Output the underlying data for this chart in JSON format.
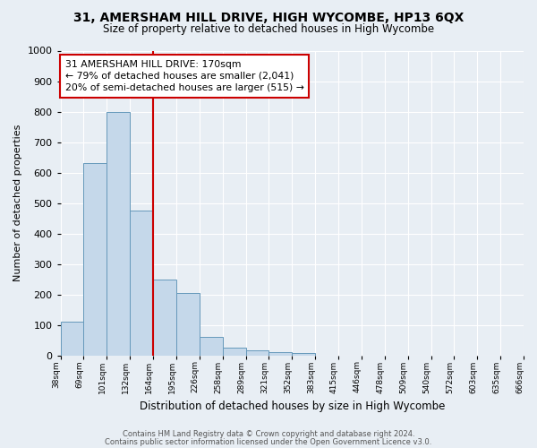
{
  "title_line1": "31, AMERSHAM HILL DRIVE, HIGH WYCOMBE, HP13 6QX",
  "title_line2": "Size of property relative to detached houses in High Wycombe",
  "bar_values": [
    110,
    630,
    800,
    475,
    250,
    205,
    60,
    27,
    18,
    10,
    7,
    0,
    0,
    0,
    0,
    0,
    0,
    0,
    0,
    0
  ],
  "bar_labels": [
    "38sqm",
    "69sqm",
    "101sqm",
    "132sqm",
    "164sqm",
    "195sqm",
    "226sqm",
    "258sqm",
    "289sqm",
    "321sqm",
    "352sqm",
    "383sqm",
    "415sqm",
    "446sqm",
    "478sqm",
    "509sqm",
    "540sqm",
    "572sqm",
    "603sqm",
    "635sqm",
    "666sqm"
  ],
  "bar_color": "#c5d8ea",
  "bar_edge_color": "#6699bb",
  "background_color": "#e8eef4",
  "grid_color": "#ffffff",
  "ylabel": "Number of detached properties",
  "xlabel": "Distribution of detached houses by size in High Wycombe",
  "ylim": [
    0,
    1000
  ],
  "yticks": [
    0,
    100,
    200,
    300,
    400,
    500,
    600,
    700,
    800,
    900,
    1000
  ],
  "vline_x": 4,
  "vline_color": "#cc0000",
  "annotation_title": "31 AMERSHAM HILL DRIVE: 170sqm",
  "annotation_line1": "← 79% of detached houses are smaller (2,041)",
  "annotation_line2": "20% of semi-detached houses are larger (515) →",
  "annotation_box_color": "#ffffff",
  "annotation_border_color": "#cc0000",
  "footer_line1": "Contains HM Land Registry data © Crown copyright and database right 2024.",
  "footer_line2": "Contains public sector information licensed under the Open Government Licence v3.0."
}
